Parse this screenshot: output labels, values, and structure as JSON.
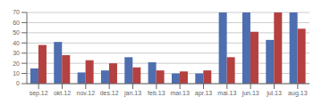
{
  "chart_data": {
    "type": "bar",
    "categories": [
      "sep.12",
      "okt.12",
      "nov.12",
      "des.12",
      "jan.13",
      "feb.13",
      "mar.13",
      "apr.13",
      "mai.13",
      "jun.13",
      "jul.13",
      "aug.13"
    ],
    "series": [
      {
        "color": "#4E6EAF",
        "values": [
          15,
          41,
          11,
          13,
          26,
          21,
          10,
          10,
          70,
          70,
          43,
          70
        ]
      },
      {
        "color": "#B54040",
        "values": [
          38,
          28,
          23,
          20,
          16,
          13,
          12,
          13,
          26,
          51,
          70,
          54
        ]
      }
    ],
    "ylim": [
      0,
      70
    ],
    "yticks": [
      0,
      10,
      20,
      30,
      40,
      50,
      60,
      70
    ],
    "grid": true
  }
}
